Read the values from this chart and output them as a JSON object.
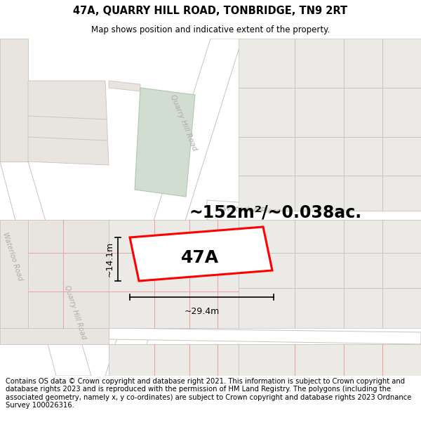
{
  "title": "47A, QUARRY HILL ROAD, TONBRIDGE, TN9 2RT",
  "subtitle": "Map shows position and indicative extent of the property.",
  "area_text": "~152m²/~0.038ac.",
  "width_text": "~29.4m",
  "height_text": "~14.1m",
  "label_47A": "47A",
  "footer": "Contains OS data © Crown copyright and database right 2021. This information is subject to Crown copyright and database rights 2023 and is reproduced with the permission of HM Land Registry. The polygons (including the associated geometry, namely x, y co-ordinates) are subject to Crown copyright and database rights 2023 Ordnance Survey 100026316.",
  "bg_color": "#f2f0ed",
  "road_color": "#ffffff",
  "road_outline": "#c8c4c0",
  "block_fill": "#e8e5e0",
  "block_fill2": "#eceae6",
  "plot_outline": "#e8a0a0",
  "green_fill": "#d0ddd0",
  "green_outline": "#b0c8b0",
  "title_fontsize": 10.5,
  "subtitle_fontsize": 8.5,
  "area_fontsize": 17,
  "label_fontsize": 18,
  "dim_fontsize": 9,
  "road_label_fontsize": 7.5,
  "footer_fontsize": 7.2,
  "road_label_color": "#b0aca8"
}
